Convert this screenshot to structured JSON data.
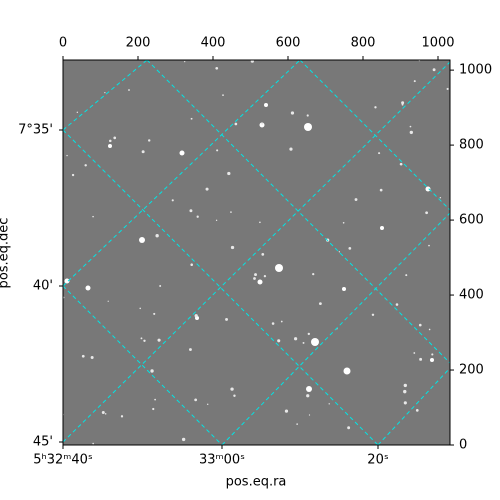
{
  "chart_data": {
    "type": "image",
    "xlabel": "pos.eq.ra",
    "ylabel": "pos.eq.dec",
    "xlim": [
      0,
      1032
    ],
    "xticks": [
      0,
      200,
      400,
      600,
      800,
      1000
    ],
    "ylim": [
      0,
      1027
    ],
    "yticks": [
      0,
      200,
      400,
      600,
      800,
      1000
    ],
    "ra_ticks": [
      "5ʰ32ᵐ40ˢ",
      "33ᵐ00ˢ",
      "20ˢ"
    ],
    "dec_ticks": [
      "7°35'",
      "40'",
      "45'"
    ],
    "grid_color": "#00e5e5",
    "grid": true
  }
}
